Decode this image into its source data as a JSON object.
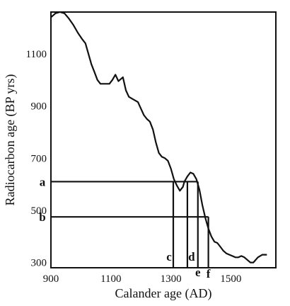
{
  "chart_data": {
    "type": "line",
    "xlabel": "Calander age (AD)",
    "ylabel": "Radiocarbon age (BP yrs)",
    "xlim": [
      900,
      1650
    ],
    "ylim": [
      280,
      1260
    ],
    "x_ticks": [
      "900",
      "1100",
      "1300",
      "1500"
    ],
    "x_tick_values": [
      900,
      1100,
      1300,
      1500
    ],
    "y_ticks": [
      "1100",
      "900",
      "700",
      "500",
      "300"
    ],
    "y_tick_values": [
      1100,
      900,
      700,
      500,
      300
    ],
    "grid": false,
    "series": [
      {
        "x": [
          900,
          915,
          930,
          945,
          960,
          975,
          990,
          1005,
          1015,
          1025,
          1035,
          1045,
          1055,
          1065,
          1080,
          1095,
          1105,
          1115,
          1125,
          1140,
          1150,
          1160,
          1175,
          1190,
          1200,
          1210,
          1220,
          1230,
          1240,
          1250,
          1260,
          1270,
          1280,
          1290,
          1300,
          1310,
          1320,
          1330,
          1340,
          1345,
          1355,
          1365,
          1375,
          1385,
          1395,
          1405,
          1415,
          1425,
          1435,
          1445,
          1455,
          1465,
          1475,
          1485,
          1495,
          1505,
          1515,
          1525,
          1535,
          1545,
          1555,
          1565,
          1575,
          1590,
          1605,
          1620
        ],
        "y": [
          1240,
          1255,
          1260,
          1255,
          1235,
          1210,
          1180,
          1155,
          1140,
          1100,
          1060,
          1030,
          1000,
          985,
          985,
          985,
          1000,
          1020,
          995,
          1010,
          960,
          935,
          925,
          915,
          890,
          865,
          850,
          840,
          810,
          760,
          720,
          705,
          700,
          690,
          660,
          620,
          595,
          575,
          590,
          610,
          630,
          645,
          640,
          620,
          580,
          520,
          470,
          430,
          400,
          380,
          375,
          360,
          345,
          335,
          330,
          325,
          320,
          320,
          325,
          320,
          310,
          300,
          300,
          320,
          330,
          330
        ]
      }
    ],
    "reference_lines": [
      {
        "label": "a",
        "y": 610,
        "x_end": 1390
      },
      {
        "label": "b",
        "y": 475,
        "x_end": 1425
      }
    ],
    "vertical_markers": [
      {
        "label": "c",
        "x": 1308,
        "y_top": 610
      },
      {
        "label": "d",
        "x": 1355,
        "y_top": 610
      },
      {
        "label": "e",
        "x": 1390,
        "y_top": 610
      },
      {
        "label": "f",
        "x": 1425,
        "y_top": 475
      }
    ]
  }
}
